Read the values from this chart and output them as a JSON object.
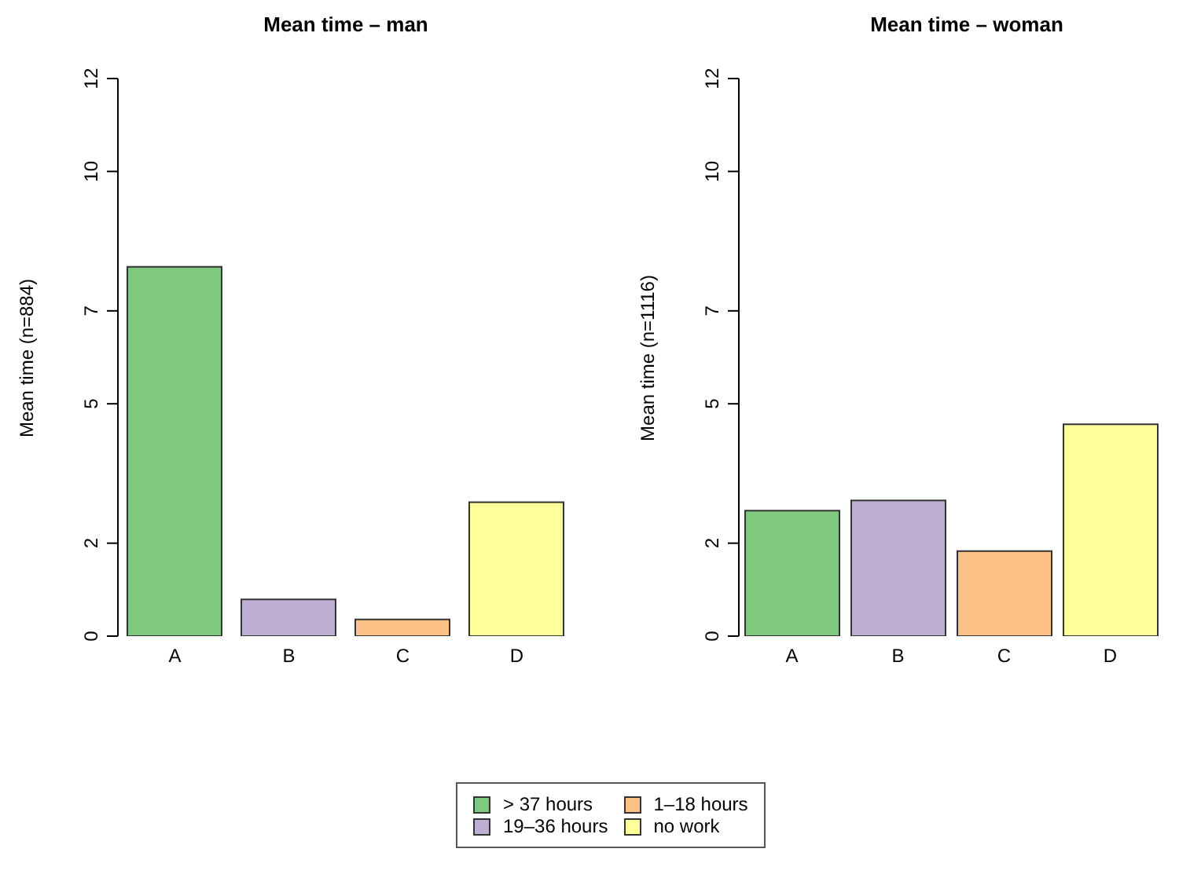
{
  "chart_data": [
    {
      "type": "bar",
      "title": "Mean time – man",
      "ylabel": "Mean time (n=884)",
      "categories": [
        "A",
        "B",
        "C",
        "D"
      ],
      "stacked": true,
      "ylim": [
        0,
        12
      ],
      "yticks": [
        0,
        2,
        5,
        7,
        10,
        12
      ],
      "legend": "bottom",
      "grid": false,
      "series": [
        {
          "name": "> 37 hours",
          "color": "#7fc97f",
          "values": [
            7.95,
            null,
            null,
            null
          ]
        },
        {
          "name": "19–36 hours",
          "color": "#beaed4",
          "values": [
            null,
            0.79,
            null,
            null
          ]
        },
        {
          "name": "1–18 hours",
          "color": "#fdc086",
          "values": [
            null,
            null,
            0.36,
            null
          ]
        },
        {
          "name": "no work",
          "color": "#ffff99",
          "values": [
            null,
            null,
            null,
            2.88
          ]
        }
      ]
    },
    {
      "type": "bar",
      "title": "Mean time – woman",
      "ylabel": "Mean time (n=1116)",
      "categories": [
        "A",
        "B",
        "C",
        "D"
      ],
      "stacked": true,
      "ylim": [
        0,
        12
      ],
      "yticks": [
        0,
        2,
        5,
        7,
        10,
        12
      ],
      "grid": false,
      "series": [
        {
          "color": "#7fc97f",
          "values": [
            2.7,
            null,
            null,
            null
          ]
        },
        {
          "color": "#beaed4",
          "values": [
            null,
            2.92,
            null,
            null
          ]
        },
        {
          "color": "#fdc086",
          "values": [
            null,
            null,
            1.83,
            null
          ]
        },
        {
          "color": "#ffff99",
          "values": [
            null,
            null,
            null,
            4.56
          ]
        }
      ]
    }
  ]
}
